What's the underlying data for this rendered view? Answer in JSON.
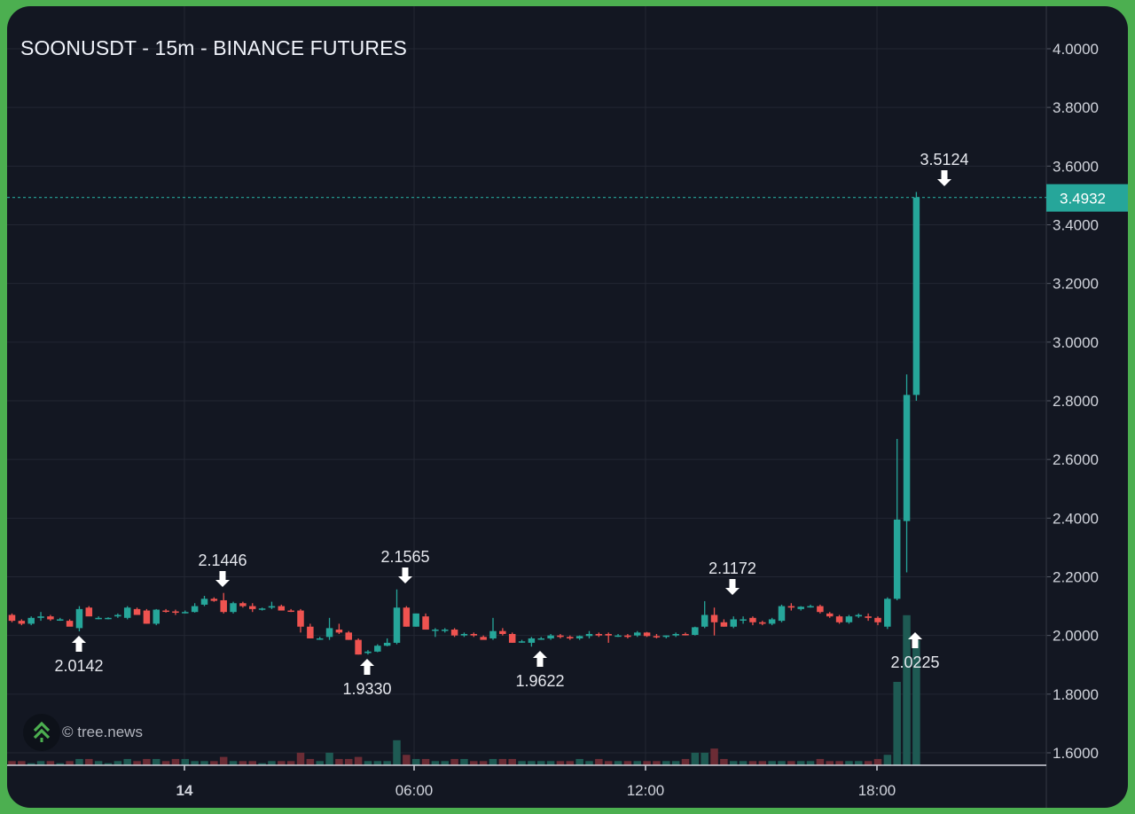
{
  "header": {
    "title": "SOONUSDT - 15m - BINANCE FUTURES"
  },
  "watermark": {
    "icon": "tree-logo-icon",
    "text": "© tree.news"
  },
  "colors": {
    "frame": "#4caf50",
    "background": "#131722",
    "up": "#26a69a",
    "down": "#ef5350",
    "volume_up": "#1e5a53",
    "volume_down": "#6b2c35",
    "grid": "#232733",
    "text": "#d1d4dc",
    "last_price_label_bg": "#26a69a"
  },
  "price_axis": {
    "labels": [
      "4.0000",
      "3.8000",
      "3.6000",
      "3.4000",
      "3.2000",
      "3.0000",
      "2.8000",
      "2.6000",
      "2.4000",
      "2.2000",
      "2.0000",
      "1.8000",
      "1.6000"
    ],
    "last_price": "3.4932"
  },
  "time_axis": {
    "labels": [
      {
        "text": "14",
        "bold": true
      },
      {
        "text": "06:00",
        "bold": false
      },
      {
        "text": "12:00",
        "bold": false
      },
      {
        "text": "18:00",
        "bold": false
      }
    ]
  },
  "chart_data": {
    "type": "candlestick",
    "title": "SOONUSDT - 15m - BINANCE FUTURES",
    "symbol": "SOONUSDT",
    "interval": "15m",
    "exchange": "BINANCE FUTURES",
    "ylim": [
      1.55,
      4.05
    ],
    "yticks": [
      4.0,
      3.8,
      3.6,
      3.4,
      3.2,
      3.0,
      2.8,
      2.6,
      2.4,
      2.2,
      2.0,
      1.8,
      1.6
    ],
    "xticks": [
      "14",
      "06:00",
      "12:00",
      "18:00"
    ],
    "grid": true,
    "last_price": 3.4932,
    "annotations": [
      {
        "label": "2.0142",
        "type": "low",
        "arrow": "up"
      },
      {
        "label": "2.1446",
        "type": "high",
        "arrow": "down"
      },
      {
        "label": "1.9330",
        "type": "low",
        "arrow": "up"
      },
      {
        "label": "2.1565",
        "type": "high",
        "arrow": "down"
      },
      {
        "label": "1.9622",
        "type": "low",
        "arrow": "up"
      },
      {
        "label": "2.1172",
        "type": "high",
        "arrow": "down"
      },
      {
        "label": "2.0225",
        "type": "low",
        "arrow": "up"
      },
      {
        "label": "3.5124",
        "type": "high",
        "arrow": "down"
      }
    ],
    "candles": [
      [
        2.07,
        2.075,
        2.045,
        2.05,
        2
      ],
      [
        2.05,
        2.055,
        2.035,
        2.04,
        2
      ],
      [
        2.04,
        2.065,
        2.035,
        2.06,
        1
      ],
      [
        2.06,
        2.08,
        2.05,
        2.065,
        2
      ],
      [
        2.065,
        2.07,
        2.05,
        2.055,
        2
      ],
      [
        2.055,
        2.06,
        2.05,
        2.055,
        1
      ],
      [
        2.05,
        2.055,
        2.04,
        2.03,
        2
      ],
      [
        2.025,
        2.1,
        2.014,
        2.09,
        3
      ],
      [
        2.095,
        2.1,
        2.07,
        2.065,
        3
      ],
      [
        2.06,
        2.065,
        2.055,
        2.06,
        2
      ],
      [
        2.058,
        2.062,
        2.055,
        2.06,
        1
      ],
      [
        2.065,
        2.075,
        2.06,
        2.07,
        2
      ],
      [
        2.06,
        2.1,
        2.055,
        2.095,
        3
      ],
      [
        2.09,
        2.095,
        2.08,
        2.07,
        2
      ],
      [
        2.085,
        2.09,
        2.04,
        2.04,
        3
      ],
      [
        2.04,
        2.09,
        2.035,
        2.088,
        3
      ],
      [
        2.085,
        2.09,
        2.078,
        2.082,
        2
      ],
      [
        2.082,
        2.088,
        2.07,
        2.08,
        3
      ],
      [
        2.08,
        2.085,
        2.075,
        2.08,
        3
      ],
      [
        2.08,
        2.11,
        2.078,
        2.1,
        2
      ],
      [
        2.105,
        2.135,
        2.1,
        2.125,
        2
      ],
      [
        2.125,
        2.13,
        2.115,
        2.118,
        2
      ],
      [
        2.12,
        2.145,
        2.075,
        2.08,
        4
      ],
      [
        2.08,
        2.115,
        2.075,
        2.11,
        2
      ],
      [
        2.11,
        2.115,
        2.095,
        2.1,
        2
      ],
      [
        2.1,
        2.11,
        2.08,
        2.09,
        2
      ],
      [
        2.09,
        2.095,
        2.085,
        2.092,
        1
      ],
      [
        2.095,
        2.115,
        2.09,
        2.1,
        2
      ],
      [
        2.1,
        2.105,
        2.085,
        2.085,
        2
      ],
      [
        2.085,
        2.09,
        2.08,
        2.083,
        2
      ],
      [
        2.085,
        2.09,
        2.01,
        2.03,
        6
      ],
      [
        2.03,
        2.04,
        1.99,
        1.99,
        3
      ],
      [
        1.99,
        1.995,
        1.985,
        1.99,
        2
      ],
      [
        1.995,
        2.06,
        1.985,
        2.025,
        6
      ],
      [
        2.02,
        2.04,
        2.005,
        2.01,
        3
      ],
      [
        2.01,
        2.015,
        1.985,
        1.985,
        3
      ],
      [
        1.985,
        1.99,
        1.935,
        1.935,
        4
      ],
      [
        1.94,
        1.95,
        1.935,
        1.945,
        2
      ],
      [
        1.945,
        1.97,
        1.943,
        1.965,
        2
      ],
      [
        1.965,
        1.99,
        1.963,
        1.975,
        2
      ],
      [
        1.975,
        2.157,
        1.97,
        2.095,
        12
      ],
      [
        2.095,
        2.1,
        2.03,
        2.03,
        5
      ],
      [
        2.03,
        2.075,
        2.03,
        2.075,
        3
      ],
      [
        2.065,
        2.075,
        2.02,
        2.02,
        3
      ],
      [
        2.02,
        2.025,
        1.995,
        2.02,
        2
      ],
      [
        2.02,
        2.025,
        2.01,
        2.02,
        2
      ],
      [
        2.02,
        2.025,
        1.995,
        2.0,
        3
      ],
      [
        2.0,
        2.01,
        1.995,
        2.005,
        3
      ],
      [
        2.005,
        2.01,
        1.995,
        2.0,
        2
      ],
      [
        1.995,
        2.0,
        1.99,
        1.985,
        2
      ],
      [
        1.99,
        2.06,
        1.985,
        2.015,
        3
      ],
      [
        2.015,
        2.025,
        2.0,
        2.005,
        3
      ],
      [
        2.005,
        2.01,
        1.975,
        1.975,
        3
      ],
      [
        1.98,
        1.985,
        1.975,
        1.98,
        2
      ],
      [
        1.975,
        1.995,
        1.962,
        1.99,
        2
      ],
      [
        1.99,
        1.995,
        1.985,
        1.99,
        2
      ],
      [
        1.99,
        2.005,
        1.985,
        2.0,
        2
      ],
      [
        2.0,
        2.005,
        1.99,
        1.995,
        2
      ],
      [
        1.995,
        2.0,
        1.985,
        1.99,
        2
      ],
      [
        1.99,
        2.0,
        1.985,
        1.998,
        3
      ],
      [
        1.998,
        2.015,
        1.99,
        2.005,
        2
      ],
      [
        2.005,
        2.01,
        1.995,
        2.0,
        3
      ],
      [
        2.005,
        2.01,
        1.975,
        2.0,
        2
      ],
      [
        2.0,
        2.005,
        1.995,
        2.0,
        2
      ],
      [
        2.0,
        2.005,
        1.99,
        1.995,
        2
      ],
      [
        2.0,
        2.015,
        1.995,
        2.01,
        2
      ],
      [
        2.01,
        2.012,
        1.995,
        1.998,
        2
      ],
      [
        1.998,
        2.005,
        1.99,
        1.995,
        2
      ],
      [
        1.995,
        2.0,
        1.99,
        2.0,
        2
      ],
      [
        2.0,
        2.01,
        1.995,
        2.005,
        2
      ],
      [
        2.005,
        2.01,
        2.0,
        2.002,
        3
      ],
      [
        2.002,
        2.03,
        2.0,
        2.028,
        6
      ],
      [
        2.03,
        2.117,
        2.025,
        2.07,
        6
      ],
      [
        2.07,
        2.095,
        2.0,
        2.045,
        8
      ],
      [
        2.045,
        2.055,
        2.03,
        2.03,
        3
      ],
      [
        2.03,
        2.065,
        2.025,
        2.055,
        2
      ],
      [
        2.055,
        2.065,
        2.04,
        2.055,
        2
      ],
      [
        2.06,
        2.065,
        2.035,
        2.045,
        2
      ],
      [
        2.045,
        2.05,
        2.035,
        2.04,
        2
      ],
      [
        2.04,
        2.06,
        2.035,
        2.055,
        2
      ],
      [
        2.05,
        2.105,
        2.045,
        2.1,
        2
      ],
      [
        2.1,
        2.11,
        2.085,
        2.095,
        2
      ],
      [
        2.09,
        2.1,
        2.085,
        2.098,
        2
      ],
      [
        2.1,
        2.105,
        2.095,
        2.1,
        2
      ],
      [
        2.1,
        2.105,
        2.075,
        2.08,
        3
      ],
      [
        2.075,
        2.08,
        2.06,
        2.065,
        2
      ],
      [
        2.065,
        2.07,
        2.04,
        2.045,
        2
      ],
      [
        2.045,
        2.07,
        2.04,
        2.065,
        2
      ],
      [
        2.065,
        2.075,
        2.06,
        2.07,
        2
      ],
      [
        2.065,
        2.075,
        2.05,
        2.06,
        2
      ],
      [
        2.06,
        2.065,
        2.035,
        2.045,
        3
      ],
      [
        2.03,
        2.13,
        2.022,
        2.125,
        5
      ],
      [
        2.125,
        2.67,
        2.12,
        2.395,
        40
      ],
      [
        2.39,
        2.89,
        2.215,
        2.82,
        72
      ],
      [
        2.82,
        3.512,
        2.8,
        3.493,
        60
      ]
    ],
    "volume_note": "last value in each candle is relative volume (0-100 scale)"
  }
}
